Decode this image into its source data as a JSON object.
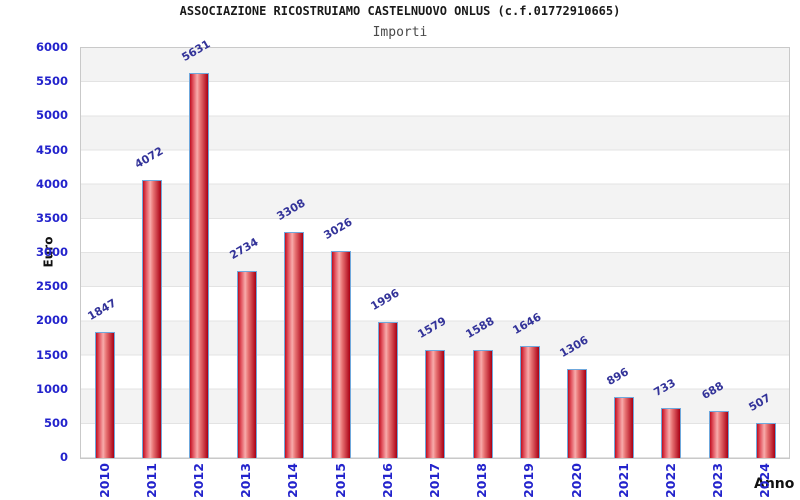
{
  "chart_data": {
    "type": "bar",
    "title": "ASSOCIAZIONE RICOSTRUIAMO CASTELNUOVO ONLUS (c.f.01772910665)",
    "subtitle": "Importi",
    "xlabel": "Anno",
    "ylabel": "Euro",
    "categories": [
      "2010",
      "2011",
      "2012",
      "2013",
      "2014",
      "2015",
      "2016",
      "2017",
      "2018",
      "2019",
      "2020",
      "2021",
      "2022",
      "2023",
      "2024"
    ],
    "values": [
      1847,
      4072,
      5631,
      2734,
      3308,
      3026,
      1996,
      1579,
      1588,
      1646,
      1306,
      896,
      733,
      688,
      507
    ],
    "ylim": [
      0,
      6000
    ],
    "ytick_step": 500,
    "grid": "horizontal-bands",
    "legend": "none",
    "colors": {
      "title": "#1a1a1a",
      "subtitle": "#4a4a4a",
      "axis_title": "#111111",
      "tick_label": "#2323cc",
      "value_label": "#333399",
      "bar_border": "#6fa8dc",
      "bar_gradient": [
        "#c00e20",
        "#e25560",
        "#f7abab",
        "#ea7878",
        "#aa0014"
      ],
      "band": "#f3f3f3",
      "gridline": "#e3e3e3",
      "plot_border": "#c9c9c9"
    }
  }
}
